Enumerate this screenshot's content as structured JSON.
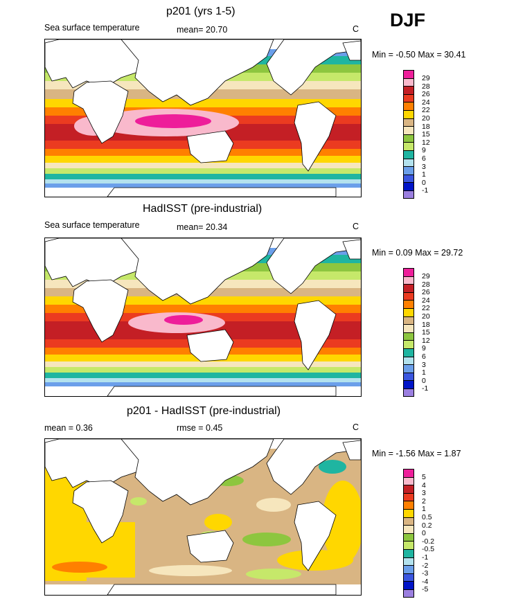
{
  "season": "DJF",
  "panels": [
    {
      "id": "model",
      "title": "p201 (yrs 1-5)",
      "left_label": "Sea surface temperature",
      "center_label": "mean=  20.70",
      "unit": "C",
      "minmax": "Min =  -0.50 Max =  30.41",
      "colorbar": {
        "colors": [
          "#ee1e9a",
          "#f9b9cc",
          "#c41f25",
          "#eb3b20",
          "#ff8000",
          "#ffd700",
          "#d9b583",
          "#f6e6bd",
          "#8dc63f",
          "#c6e86a",
          "#1fb5a1",
          "#b3e2ee",
          "#6b9fea",
          "#3a56e0",
          "#0014c8",
          "#9b7fe0"
        ],
        "labels": [
          "29",
          "28",
          "26",
          "24",
          "22",
          "20",
          "18",
          "15",
          "12",
          "9",
          "6",
          "3",
          "1",
          "0",
          "-1"
        ]
      }
    },
    {
      "id": "obs",
      "title": "HadISST (pre-industrial)",
      "left_label": "Sea surface temperature",
      "center_label": "mean=  20.34",
      "unit": "C",
      "minmax": "Min =   0.09 Max =  29.72",
      "colorbar": {
        "colors": [
          "#ee1e9a",
          "#f9b9cc",
          "#c41f25",
          "#eb3b20",
          "#ff8000",
          "#ffd700",
          "#d9b583",
          "#f6e6bd",
          "#8dc63f",
          "#c6e86a",
          "#1fb5a1",
          "#b3e2ee",
          "#6b9fea",
          "#3a56e0",
          "#0014c8",
          "#9b7fe0"
        ],
        "labels": [
          "29",
          "28",
          "26",
          "24",
          "22",
          "20",
          "18",
          "15",
          "12",
          "9",
          "6",
          "3",
          "1",
          "0",
          "-1"
        ]
      }
    },
    {
      "id": "diff",
      "title": "p201 - HadISST (pre-industrial)",
      "left_label": "mean =   0.36",
      "center_label": "rmse =   0.45",
      "unit": "C",
      "minmax": "Min =  -1.56 Max =   1.87",
      "colorbar": {
        "colors": [
          "#ee1e9a",
          "#f9b9cc",
          "#c41f25",
          "#eb3b20",
          "#ff8000",
          "#ffd700",
          "#d9b583",
          "#f6e6bd",
          "#8dc63f",
          "#c6e86a",
          "#1fb5a1",
          "#b3e2ee",
          "#6b9fea",
          "#3a56e0",
          "#0014c8",
          "#9b7fe0"
        ],
        "labels": [
          "5",
          "4",
          "3",
          "2",
          "1",
          "0.5",
          "0.2",
          "0",
          "-0.2",
          "-0.5",
          "-1",
          "-2",
          "-3",
          "-4",
          "-5"
        ]
      }
    }
  ]
}
